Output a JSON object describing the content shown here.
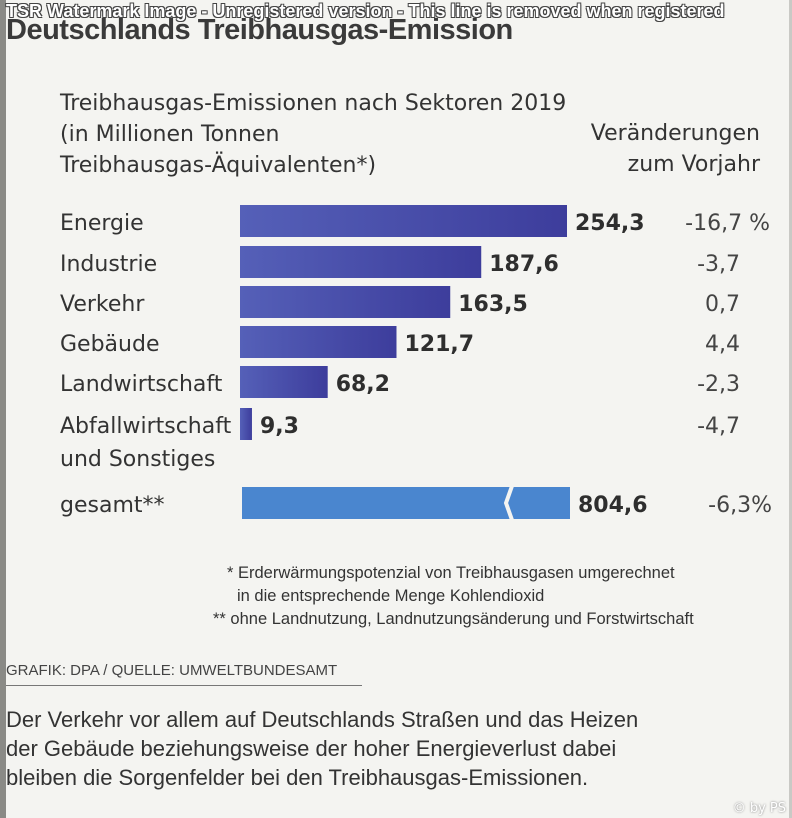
{
  "watermark": "TSR Watermark Image - Unregistered version - This line is removed when registered",
  "headline": "Deutschlands Treibhausgas-Emission",
  "chart_data": {
    "type": "bar",
    "orientation": "horizontal",
    "title_lines": [
      "Treibhausgas-Emissionen nach Sektoren 2019",
      "(in Millionen Tonnen",
      "Treibhausgas-Äquivalenten*)"
    ],
    "change_header_lines": [
      "Veränderungen",
      "zum Vorjahr"
    ],
    "categories": [
      "Energie",
      "Industrie",
      "Verkehr",
      "Gebäude",
      "Landwirtschaft",
      "Abfallwirtschaft und Sonstiges"
    ],
    "category_lines": [
      [
        "Energie"
      ],
      [
        "Industrie"
      ],
      [
        "Verkehr"
      ],
      [
        "Gebäude"
      ],
      [
        "Landwirtschaft"
      ],
      [
        "Abfallwirtschaft",
        "und Sonstiges"
      ]
    ],
    "values": [
      254.3,
      187.6,
      163.5,
      121.7,
      68.2,
      9.3
    ],
    "value_labels": [
      "254,3",
      "187,6",
      "163,5",
      "121,7",
      "68,2",
      "9,3"
    ],
    "changes": [
      "-16,7 %",
      "-3,7",
      "0,7",
      "4,4",
      "-2,3",
      "-4,7"
    ],
    "total": {
      "label": "gesamt**",
      "value": 804.6,
      "value_label": "804,6",
      "change": "-6,3%",
      "broken_axis": true
    },
    "colors": {
      "bar_start": "#5560b8",
      "bar_end": "#3d3d9c",
      "total_bar": "#4a86cf"
    }
  },
  "footnotes": [
    "* Erderwärmungspotenzial von Treibhausgasen umgerechnet",
    "in die entsprechende Menge Kohlendioxid",
    "** ohne Landnutzung, Landnutzungsänderung und Forstwirtschaft"
  ],
  "source": "GRAFIK: DPA / QUELLE: UMWELTBUNDESAMT",
  "caption_lines": [
    "Der Verkehr vor allem auf Deutschlands Straßen und das Heizen",
    "der Gebäude beziehungsweise der hoher Energieverlust dabei",
    "bleiben die Sorgenfelder bei den Treibhausgas-Emissionen."
  ],
  "credit": "© by PS"
}
